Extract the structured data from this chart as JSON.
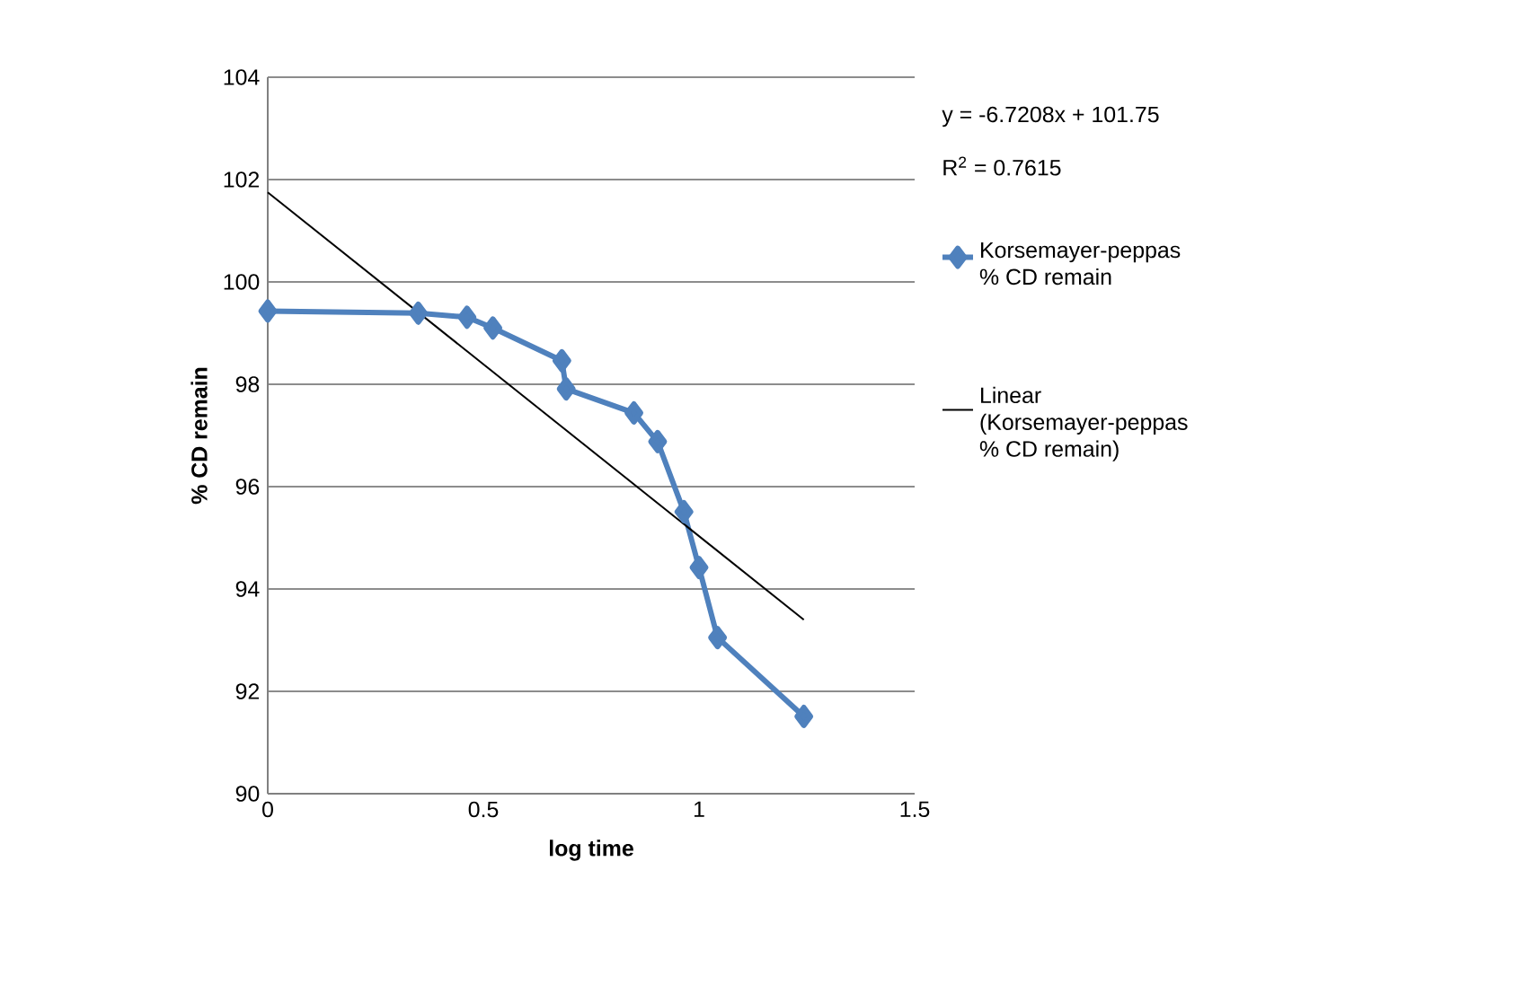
{
  "chart_data": {
    "type": "line",
    "xlabel": "log time",
    "ylabel": "% CD remain",
    "xlim": [
      0,
      1.5
    ],
    "xticks": [
      0,
      0.5,
      1,
      1.5
    ],
    "ylim": [
      90,
      104
    ],
    "yticks": [
      90,
      92,
      94,
      96,
      98,
      100,
      102,
      104
    ],
    "grid": "y",
    "legend": "right",
    "annotations": [
      "y = -6.7208x + 101.75",
      "R$^{2}$ = 0.7615"
    ],
    "series": [
      {
        "name": "Korsemayer-peppas % CD remain",
        "color": "#4f81bd",
        "marker": "diamond",
        "x": [
          0,
          0.349,
          0.462,
          0.522,
          0.682,
          0.692,
          0.849,
          0.904,
          0.965,
          1.0,
          1.043,
          1.243
        ],
        "values": [
          99.43,
          99.39,
          99.31,
          99.1,
          98.46,
          97.91,
          97.44,
          96.88,
          95.51,
          94.42,
          93.05,
          91.51
        ]
      },
      {
        "name": "Linear (Korsemayer-peppas % CD remain)",
        "color": "#000000",
        "marker": "none",
        "x": [
          0,
          1.243
        ],
        "values": [
          101.75,
          93.4
        ]
      }
    ]
  }
}
